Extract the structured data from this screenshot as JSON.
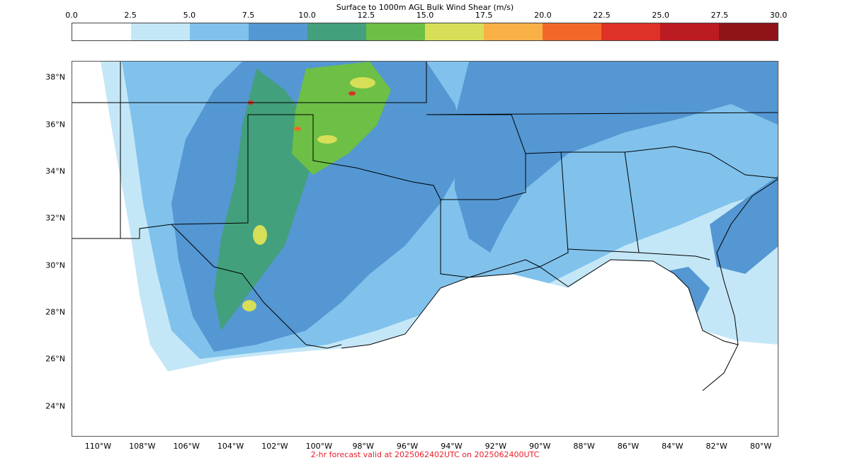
{
  "title": "Surface to 1000m AGL Bulk Wind Shear (m/s)",
  "footer": "2-hr forecast valid at 2025062402UTC on 2025062400UTC",
  "colorbar": {
    "ticks": [
      "0.0",
      "2.5",
      "5.0",
      "7.5",
      "10.0",
      "12.5",
      "15.0",
      "17.5",
      "20.0",
      "22.5",
      "25.0",
      "27.5",
      "30.0"
    ],
    "colors": [
      "#ffffff",
      "#c4e7f7",
      "#80c2ec",
      "#5497d2",
      "#43a07c",
      "#6dbf46",
      "#d6df57",
      "#f8b047",
      "#f26729",
      "#de3127",
      "#bd1b23",
      "#8f141a"
    ]
  },
  "map": {
    "extent": {
      "lon_min": -111.2,
      "lon_max": -79.2,
      "lat_min": 22.7,
      "lat_max": 38.7
    },
    "lat_labels": [
      "24°N",
      "26°N",
      "28°N",
      "30°N",
      "32°N",
      "34°N",
      "36°N",
      "38°N"
    ],
    "lat_values": [
      24,
      26,
      28,
      30,
      32,
      34,
      36,
      38
    ],
    "lon_labels": [
      "110°W",
      "108°W",
      "106°W",
      "104°W",
      "102°W",
      "100°W",
      "98°W",
      "96°W",
      "94°W",
      "92°W",
      "90°W",
      "88°W",
      "86°W",
      "84°W",
      "82°W",
      "80°W"
    ],
    "lon_values": [
      -110,
      -108,
      -106,
      -104,
      -102,
      -100,
      -98,
      -96,
      -94,
      -92,
      -90,
      -88,
      -86,
      -84,
      -82,
      -80
    ]
  }
}
